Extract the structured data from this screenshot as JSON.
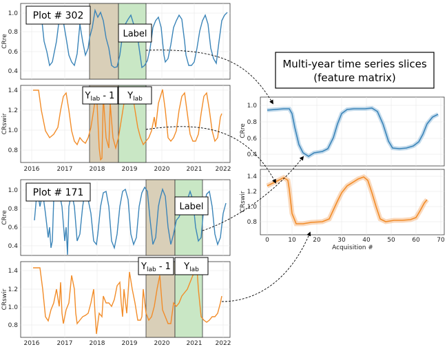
{
  "title_box": {
    "line1": "Multi-year time series slices",
    "line2": "(feature matrix)"
  },
  "colors": {
    "crre": "#3a84b8",
    "crswir": "#f28c28",
    "prev_year_band": "#d9cfb8",
    "label_year_band": "#c9e7c5"
  },
  "x_year_ticks": [
    "2016",
    "2017",
    "2018",
    "2019",
    "2020",
    "2021",
    "2022"
  ],
  "plot302": {
    "plot_label": "Plot # 302",
    "label_box": "Label",
    "ylab_prev_main": "Y",
    "ylab_prev_sub": "lab",
    "ylab_prev_suffix": " - 1",
    "ylab_main": "Y",
    "ylab_sub": "lab",
    "crre": {
      "ylabel": "CRre",
      "yticks": [
        "0.4",
        "0.6",
        "0.8",
        "1.0"
      ]
    },
    "crswir": {
      "ylabel": "CRswir",
      "yticks": [
        "0.8",
        "1.0",
        "1.2",
        "1.4"
      ]
    }
  },
  "plot171": {
    "plot_label": "Plot # 171",
    "label_box": "Label",
    "ylab_prev_main": "Y",
    "ylab_prev_sub": "lab",
    "ylab_prev_suffix": " - 1",
    "ylab_main": "Y",
    "ylab_sub": "lab",
    "crre": {
      "ylabel": "CRre",
      "yticks": [
        "0.4",
        "0.6",
        "0.8",
        "1.0"
      ]
    },
    "crswir": {
      "ylabel": "CRswir",
      "yticks": [
        "0.8",
        "1.0",
        "1.2",
        "1.4"
      ]
    }
  },
  "feature": {
    "crre": {
      "ylabel": "CRre",
      "yticks": [
        "0.4",
        "0.6",
        "0.8",
        "1.0"
      ]
    },
    "crswir": {
      "ylabel": "CRswir",
      "yticks": [
        "0.8",
        "1.0",
        "1.2",
        "1.4"
      ]
    },
    "xlabel": "Acquisition #",
    "xticks": [
      "0",
      "10",
      "20",
      "30",
      "40",
      "50",
      "60",
      "70"
    ]
  }
}
